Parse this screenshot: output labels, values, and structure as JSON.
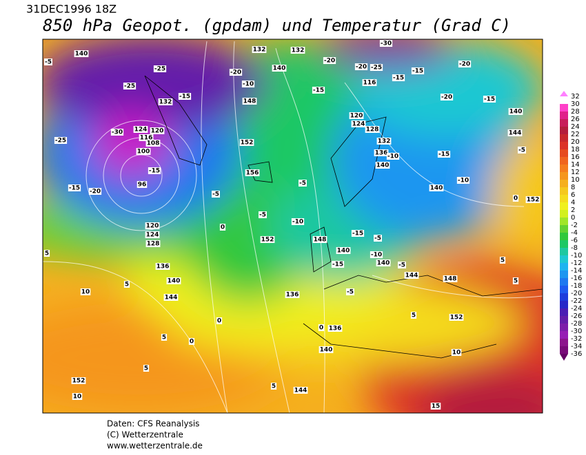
{
  "header": {
    "date": "31DEC1996 18Z",
    "title": "850 hPa Geopot. (gpdam) und  Temperatur (Grad C)"
  },
  "legend": {
    "levels": [
      32,
      30,
      28,
      26,
      24,
      22,
      20,
      18,
      16,
      14,
      12,
      10,
      8,
      6,
      4,
      2,
      0,
      -2,
      -4,
      -6,
      -8,
      -10,
      -12,
      -14,
      -16,
      -18,
      -20,
      -22,
      -24,
      -26,
      -28,
      -30,
      -32,
      -34,
      -36
    ],
    "colors": [
      "#ff80ff",
      "#ff40c8",
      "#e0208a",
      "#c81e5a",
      "#b41e3c",
      "#c8282d",
      "#dc3228",
      "#e64b1e",
      "#f0641e",
      "#f57d1e",
      "#f5961e",
      "#f5af1e",
      "#f5c81e",
      "#f5dc1e",
      "#f0f01e",
      "#d2f01e",
      "#a0e628",
      "#64d232",
      "#32c83c",
      "#1ec864",
      "#1ec8a0",
      "#1ec8d2",
      "#1eb4f0",
      "#1e96f0",
      "#1e78f0",
      "#1e5af0",
      "#1e3cdc",
      "#2828c8",
      "#4b1eb4",
      "#641eaa",
      "#7d1eaa",
      "#961eb4",
      "#8c148c",
      "#780a78",
      "#640064"
    ]
  },
  "map": {
    "labels": [
      140,
      -5,
      -25,
      -25,
      132,
      -15,
      -30,
      -25,
      124,
      120,
      116,
      108,
      100,
      -15,
      96,
      -15,
      -20,
      -5,
      120,
      124,
      128,
      136,
      140,
      144,
      10,
      5,
      5,
      0,
      0,
      0,
      5,
      152,
      10,
      5,
      148,
      -10,
      -20,
      132,
      132,
      140,
      -20,
      -30,
      -20,
      -25,
      -15,
      -20,
      -15,
      116,
      -15,
      -20,
      -15,
      140,
      144,
      -5,
      -15,
      -10,
      140,
      120,
      124,
      128,
      132,
      136,
      140,
      -10,
      152,
      156,
      -5,
      -5,
      -10,
      148,
      152,
      -5,
      -15,
      140,
      -10,
      -15,
      140,
      -5,
      144,
      148,
      136,
      -5,
      5,
      152,
      0,
      136,
      140,
      10,
      144,
      5,
      15,
      5,
      5,
      152,
      0
    ]
  },
  "footer": {
    "lines": [
      "Daten: CFS Reanalysis",
      "(C) Wetterzentrale",
      "www.wetterzentrale.de"
    ]
  }
}
